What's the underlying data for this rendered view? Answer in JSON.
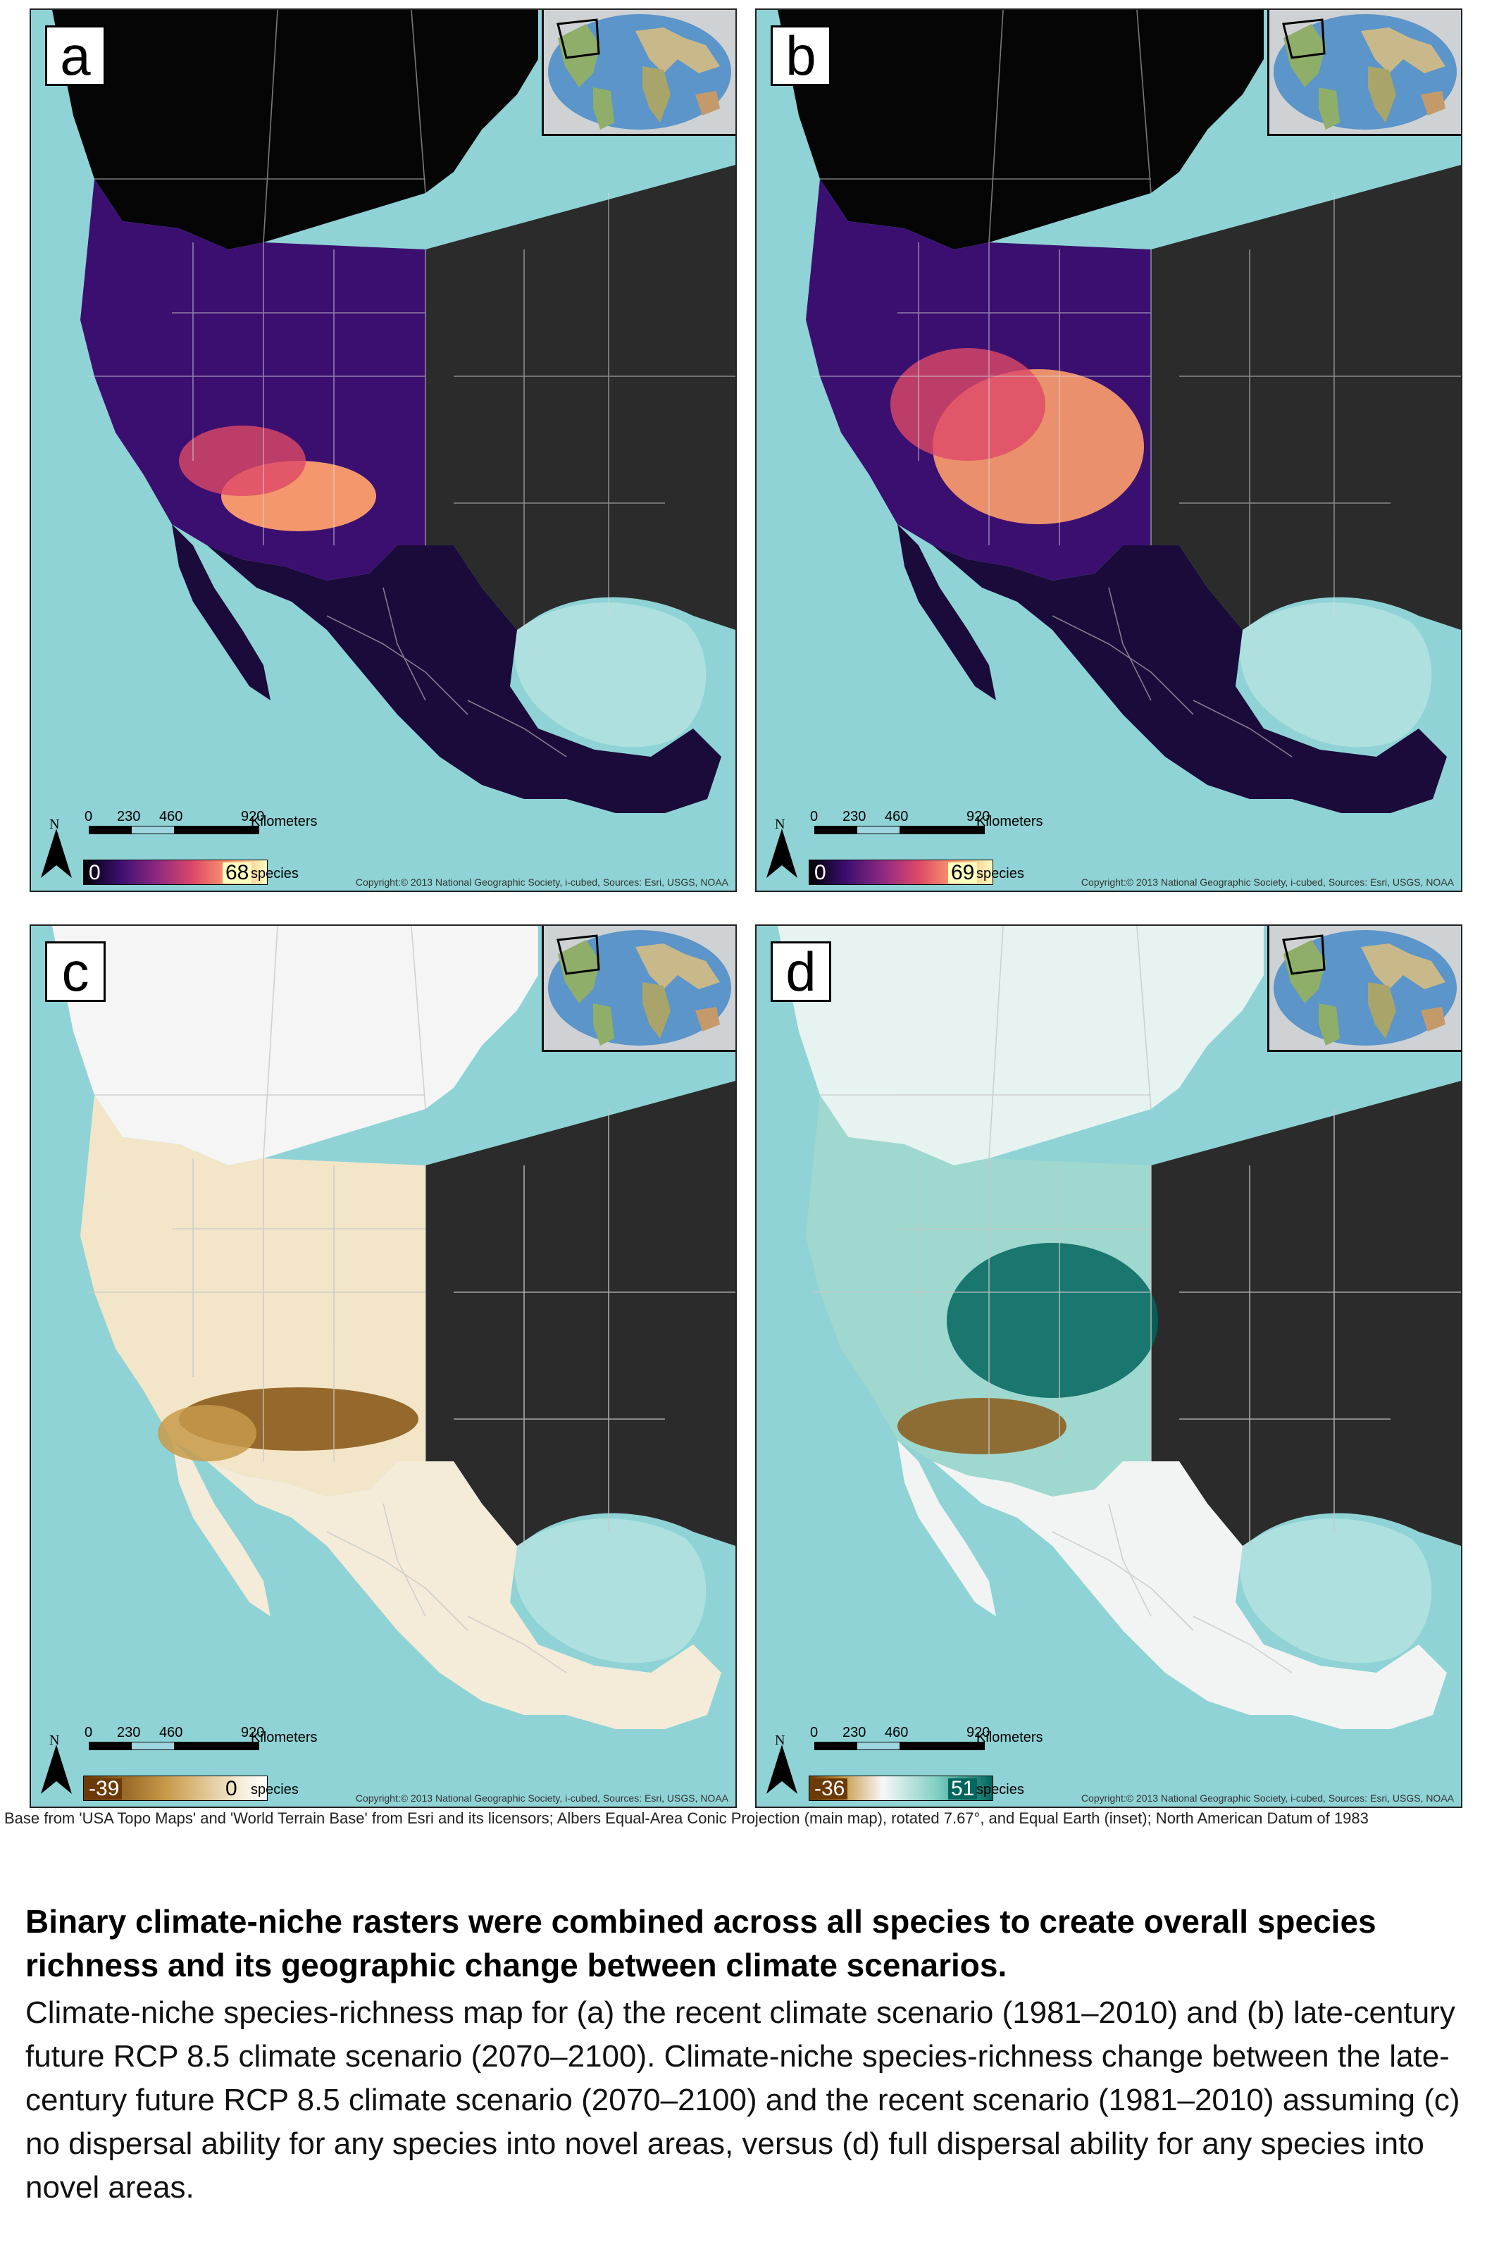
{
  "panels": [
    {
      "id": "a",
      "letter": "a",
      "scenario": "recent climate species richness",
      "scale": {
        "t0": "0",
        "t1": "230",
        "t2": "460",
        "t3": "920",
        "unit": "Kilometers"
      },
      "north": "N",
      "legend": {
        "min": "0",
        "max": "68",
        "unit": "species",
        "palette": "inferno",
        "colors": [
          "#000004",
          "#3b0f70",
          "#8c2981",
          "#de4968",
          "#fe9f6d",
          "#fcfdbf"
        ]
      },
      "copyright": "Copyright:© 2013 National Geographic Society, i-cubed, Sources: Esri, USGS, NOAA"
    },
    {
      "id": "b",
      "letter": "b",
      "scenario": "late-century RCP 8.5 species richness",
      "scale": {
        "t0": "0",
        "t1": "230",
        "t2": "460",
        "t3": "920",
        "unit": "Kilometers"
      },
      "north": "N",
      "legend": {
        "min": "0",
        "max": "69",
        "unit": "species",
        "palette": "inferno",
        "colors": [
          "#000004",
          "#3b0f70",
          "#8c2981",
          "#de4968",
          "#fe9f6d",
          "#fcfdbf"
        ]
      },
      "copyright": "Copyright:© 2013 National Geographic Society, i-cubed, Sources: Esri, USGS, NOAA"
    },
    {
      "id": "c",
      "letter": "c",
      "scenario": "richness change, no dispersal",
      "scale": {
        "t0": "0",
        "t1": "230",
        "t2": "460",
        "t3": "920",
        "unit": "Kilometers"
      },
      "north": "N",
      "legend": {
        "min": "-39",
        "max": "0",
        "unit": "species",
        "palette": "brown-teal",
        "colors": [
          "#6b3a06",
          "#c89a4a",
          "#f5ecd6",
          "#f7f7f7",
          "#7fcfc3",
          "#01665e"
        ]
      },
      "copyright": "Copyright:© 2013 National Geographic Society, i-cubed, Sources: Esri, USGS, NOAA"
    },
    {
      "id": "d",
      "letter": "d",
      "scenario": "richness change, full dispersal",
      "scale": {
        "t0": "0",
        "t1": "230",
        "t2": "460",
        "t3": "920",
        "unit": "Kilometers"
      },
      "north": "N",
      "legend": {
        "min": "-36",
        "max": "51",
        "unit": "species",
        "palette": "brown-teal",
        "colors": [
          "#6b3a06",
          "#c89a4a",
          "#f5ecd6",
          "#f7f7f7",
          "#7fcfc3",
          "#01665e"
        ]
      },
      "copyright": "Copyright:© 2013 National Geographic Society, i-cubed, Sources: Esri, USGS, NOAA"
    }
  ],
  "colors": {
    "ocean": "#8fd3d6",
    "ocean_deep": "#aee0e0",
    "land_outside": "#2b2b2b",
    "canada_dark": "#050505",
    "canada_light": "#f5f5f5",
    "border": "#d8d8d8"
  },
  "base_note": "Base from 'USA Topo Maps' and 'World Terrain  Base' from Esri and its licensors; Albers Equal-Area Conic Projection (main map), rotated 7.67°, and Equal Earth (inset); North American Datum of 1983",
  "caption": {
    "title": "Binary climate-niche rasters were combined across all species to create overall species richness and its geographic change between climate scenarios.",
    "body": "Climate-niche species-richness map for (a) the recent climate scenario (1981–2010) and (b) late-century future RCP 8.5 climate scenario (2070–2100). Climate-niche species-richness change between the late-century future RCP 8.5 climate scenario (2070–2100) and the recent scenario (1981–2010) assuming (c) no dispersal ability for any species into novel areas, versus (d) full dispersal ability for any species into novel areas."
  }
}
